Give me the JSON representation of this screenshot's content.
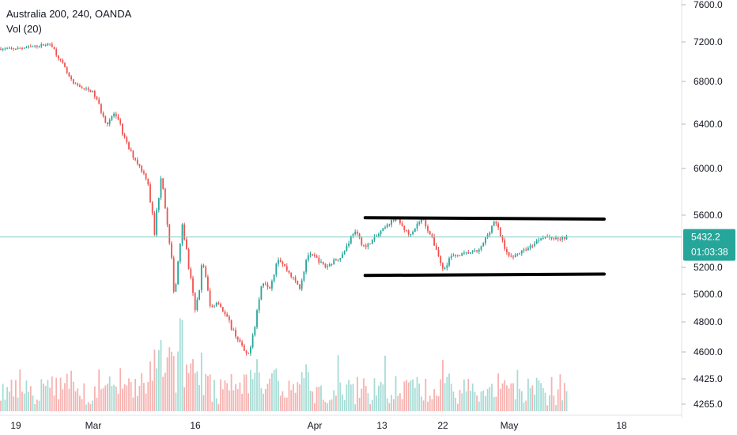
{
  "legend": {
    "symbol": "Australia 200, 240, OANDA",
    "volume": "Vol (20)"
  },
  "colors": {
    "up": "#26a69a",
    "down": "#ef5350",
    "vol_up": "#a6dcd5",
    "vol_down": "#f6b2b0",
    "price_line": "#80cbc4",
    "axis_text": "#131722",
    "border": "#e0e3eb",
    "trendline": "#000000",
    "label_bg": "#26a69a",
    "label_text": "#ffffff"
  },
  "chart_data": {
    "type": "candlestick",
    "title": "Australia 200, 240, OANDA",
    "indicator": "Vol (20)",
    "y_ticks": [
      "7600.0",
      "7200.0",
      "6800.0",
      "6400.0",
      "6000.0",
      "5600.0",
      "5200.0",
      "5000.0",
      "4800.0",
      "4600.0",
      "4425.0",
      "4265.0"
    ],
    "x_ticks": [
      "19",
      "Mar",
      "16",
      "Apr",
      "13",
      "22",
      "May",
      "18"
    ],
    "x_tick_dates": [
      "2020-02-19",
      "2020-03-01",
      "2020-03-16",
      "2020-04-01",
      "2020-04-13",
      "2020-04-22",
      "2020-05-01",
      "2020-05-18"
    ],
    "current_price": "5432.2",
    "countdown": "01:03:38",
    "price_path": [
      [
        "2020-02-19",
        7130
      ],
      [
        "2020-02-24",
        7180
      ],
      [
        "2020-02-26",
        6920
      ],
      [
        "2020-02-27",
        6780
      ],
      [
        "2020-03-01",
        6700
      ],
      [
        "2020-03-03",
        6400
      ],
      [
        "2020-03-04",
        6500
      ],
      [
        "2020-03-05",
        6380
      ],
      [
        "2020-03-06",
        6200
      ],
      [
        "2020-03-09",
        5900
      ],
      [
        "2020-03-10",
        5450
      ],
      [
        "2020-03-11",
        5980
      ],
      [
        "2020-03-12",
        5450
      ],
      [
        "2020-03-13",
        5000
      ],
      [
        "2020-03-14",
        5580
      ],
      [
        "2020-03-16",
        4850
      ],
      [
        "2020-03-17",
        5250
      ],
      [
        "2020-03-18",
        4900
      ],
      [
        "2020-03-19",
        4950
      ],
      [
        "2020-03-20",
        4850
      ],
      [
        "2020-03-23",
        4560
      ],
      [
        "2020-03-24",
        4800
      ],
      [
        "2020-03-25",
        5100
      ],
      [
        "2020-03-26",
        5050
      ],
      [
        "2020-03-27",
        5280
      ],
      [
        "2020-03-30",
        5050
      ],
      [
        "2020-03-31",
        5300
      ],
      [
        "2020-04-01",
        5280
      ],
      [
        "2020-04-03",
        5200
      ],
      [
        "2020-04-06",
        5300
      ],
      [
        "2020-04-08",
        5480
      ],
      [
        "2020-04-10",
        5350
      ],
      [
        "2020-04-13",
        5480
      ],
      [
        "2020-04-15",
        5580
      ],
      [
        "2020-04-17",
        5450
      ],
      [
        "2020-04-19",
        5580
      ],
      [
        "2020-04-21",
        5350
      ],
      [
        "2020-04-22",
        5180
      ],
      [
        "2020-04-23",
        5280
      ],
      [
        "2020-04-27",
        5330
      ],
      [
        "2020-04-29",
        5560
      ],
      [
        "2020-05-01",
        5270
      ],
      [
        "2020-05-04",
        5350
      ],
      [
        "2020-05-06",
        5440
      ],
      [
        "2020-05-08",
        5420
      ],
      [
        "2020-05-10",
        5432.2
      ]
    ],
    "resistance_line": {
      "from": [
        "2020-04-10",
        5580
      ],
      "to": [
        "2020-05-18",
        5570
      ]
    },
    "support_line": {
      "from": [
        "2020-04-10",
        5140
      ],
      "to": [
        "2020-05-18",
        5150
      ]
    }
  }
}
